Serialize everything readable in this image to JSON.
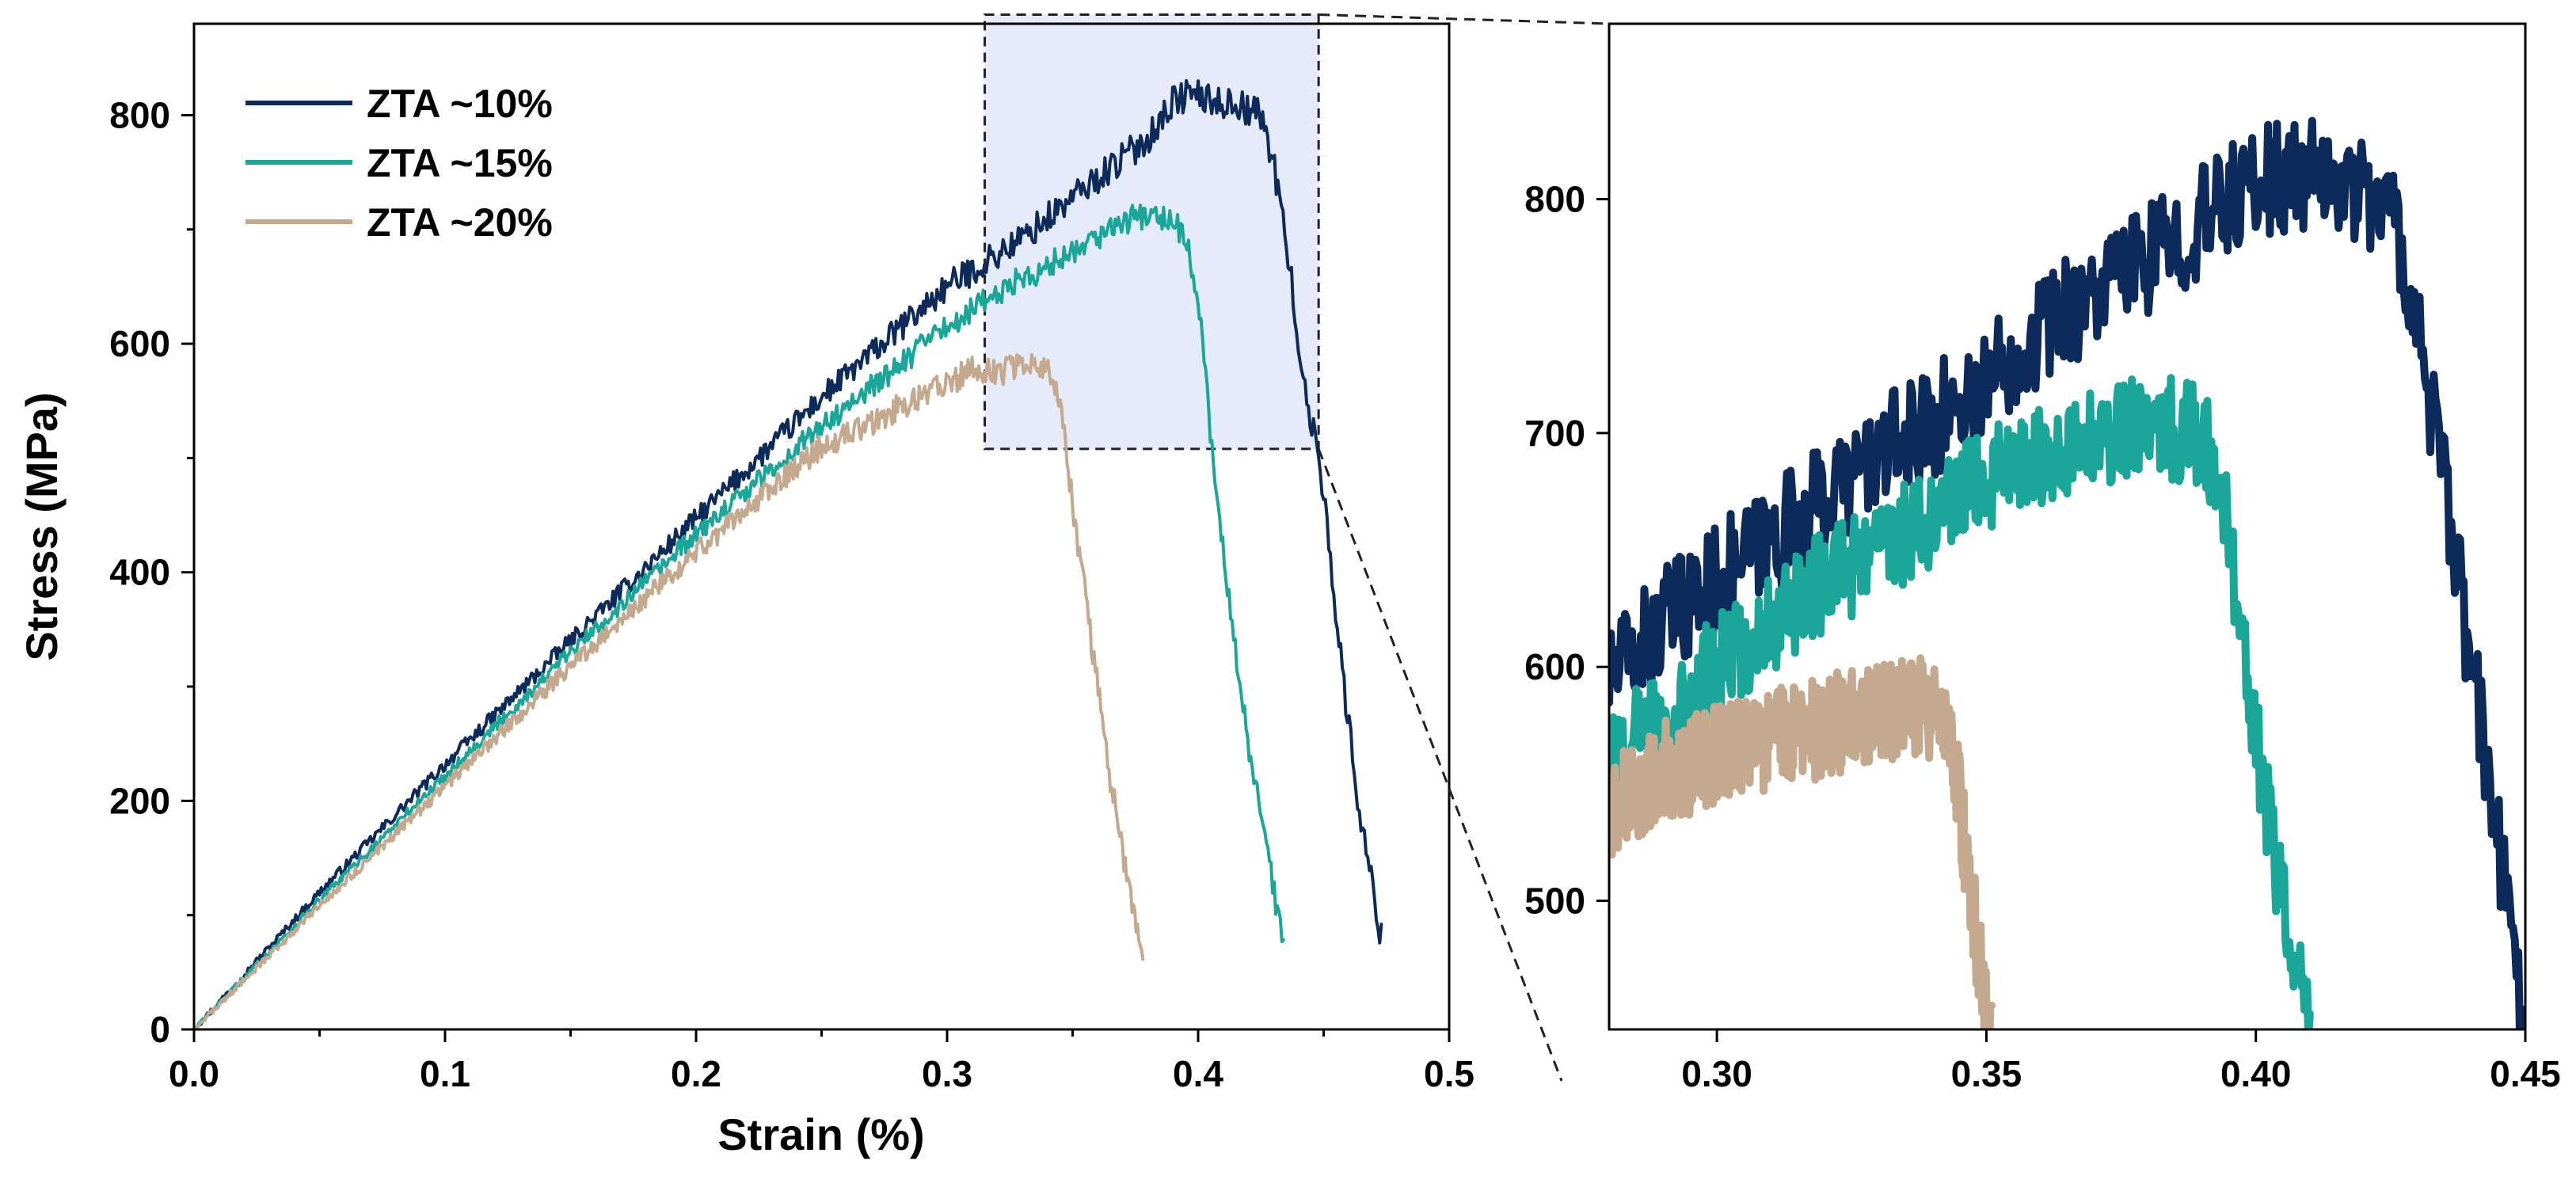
{
  "chart_data": [
    {
      "id": "main",
      "type": "line",
      "xlabel": "Strain (%)",
      "ylabel": "Stress (MPa)",
      "xlim": [
        0,
        0.5
      ],
      "ylim": [
        0,
        880
      ],
      "xticks": [
        0.0,
        0.1,
        0.2,
        0.3,
        0.4,
        0.5
      ],
      "xtick_labels": [
        "0.0",
        "0.1",
        "0.2",
        "0.3",
        "0.4",
        "0.5"
      ],
      "yticks": [
        0,
        200,
        400,
        600,
        800
      ],
      "ytick_labels": [
        "0",
        "200",
        "400",
        "600",
        "800"
      ],
      "grid": false,
      "legend_position": "top-left",
      "inset_highlight": {
        "x": [
          0.315,
          0.448
        ],
        "y": [
          508,
          888
        ]
      },
      "series": [
        {
          "name": "ZTA ~10%",
          "color": "#0d2b5a",
          "noise": 14,
          "x": [
            0,
            0.05,
            0.1,
            0.15,
            0.2,
            0.25,
            0.3,
            0.33,
            0.36,
            0.38,
            0.39,
            0.398,
            0.405,
            0.415,
            0.425,
            0.43,
            0.437,
            0.442,
            0.448,
            0.452,
            0.458,
            0.465,
            0.473
          ],
          "y": [
            0,
            120,
            232,
            340,
            447,
            553,
            650,
            692,
            745,
            780,
            812,
            820,
            812,
            810,
            800,
            760,
            660,
            560,
            505,
            430,
            300,
            180,
            80
          ]
        },
        {
          "name": "ZTA ~15%",
          "color": "#1aa79a",
          "noise": 12,
          "x": [
            0,
            0.05,
            0.1,
            0.15,
            0.2,
            0.25,
            0.3,
            0.32,
            0.34,
            0.36,
            0.375,
            0.385,
            0.39,
            0.395,
            0.4,
            0.405,
            0.41,
            0.415,
            0.42,
            0.428,
            0.434
          ],
          "y": [
            0,
            113,
            222,
            330,
            433,
            528,
            615,
            645,
            668,
            695,
            712,
            710,
            705,
            695,
            640,
            520,
            420,
            330,
            250,
            150,
            70
          ]
        },
        {
          "name": "ZTA ~20%",
          "color": "#c4a98e",
          "noise": 12,
          "x": [
            0,
            0.05,
            0.1,
            0.15,
            0.2,
            0.25,
            0.3,
            0.31,
            0.32,
            0.33,
            0.335,
            0.34,
            0.343,
            0.346,
            0.35,
            0.355,
            0.36,
            0.365,
            0.372,
            0.378
          ],
          "y": [
            0,
            108,
            213,
            318,
            418,
            510,
            565,
            578,
            575,
            580,
            585,
            575,
            565,
            530,
            460,
            380,
            300,
            220,
            130,
            55
          ]
        }
      ]
    },
    {
      "id": "inset",
      "type": "line",
      "xlim": [
        0.28,
        0.45
      ],
      "ylim": [
        445,
        875
      ],
      "xticks": [
        0.3,
        0.35,
        0.4,
        0.45
      ],
      "xtick_labels": [
        "0.30",
        "0.35",
        "0.40",
        "0.45"
      ],
      "yticks": [
        500,
        600,
        700,
        800
      ],
      "ytick_labels": [
        "500",
        "600",
        "700",
        "800"
      ],
      "grid": false,
      "series": [
        {
          "color": "#0d2b5a",
          "noise": 24,
          "x": [
            0.28,
            0.29,
            0.3,
            0.31,
            0.32,
            0.33,
            0.34,
            0.35,
            0.36,
            0.37,
            0.38,
            0.39,
            0.4,
            0.41,
            0.42,
            0.425,
            0.428,
            0.432,
            0.436,
            0.44,
            0.444,
            0.448,
            0.45
          ],
          "y": [
            595,
            618,
            637,
            655,
            672,
            690,
            705,
            722,
            745,
            760,
            775,
            790,
            808,
            810,
            805,
            795,
            770,
            720,
            660,
            600,
            540,
            475,
            450
          ]
        },
        {
          "color": "#1aa79a",
          "noise": 22,
          "x": [
            0.28,
            0.29,
            0.3,
            0.31,
            0.32,
            0.33,
            0.34,
            0.35,
            0.36,
            0.37,
            0.38,
            0.39,
            0.393,
            0.396,
            0.399,
            0.402,
            0.405,
            0.408,
            0.41
          ],
          "y": [
            560,
            580,
            600,
            620,
            637,
            650,
            665,
            680,
            690,
            698,
            703,
            700,
            680,
            640,
            590,
            540,
            500,
            465,
            445
          ]
        },
        {
          "color": "#c4a98e",
          "noise": 22,
          "x": [
            0.28,
            0.29,
            0.3,
            0.31,
            0.32,
            0.33,
            0.34,
            0.343,
            0.345,
            0.347,
            0.349,
            0.351
          ],
          "y": [
            540,
            555,
            562,
            568,
            575,
            580,
            583,
            572,
            545,
            505,
            470,
            445
          ]
        }
      ]
    }
  ]
}
